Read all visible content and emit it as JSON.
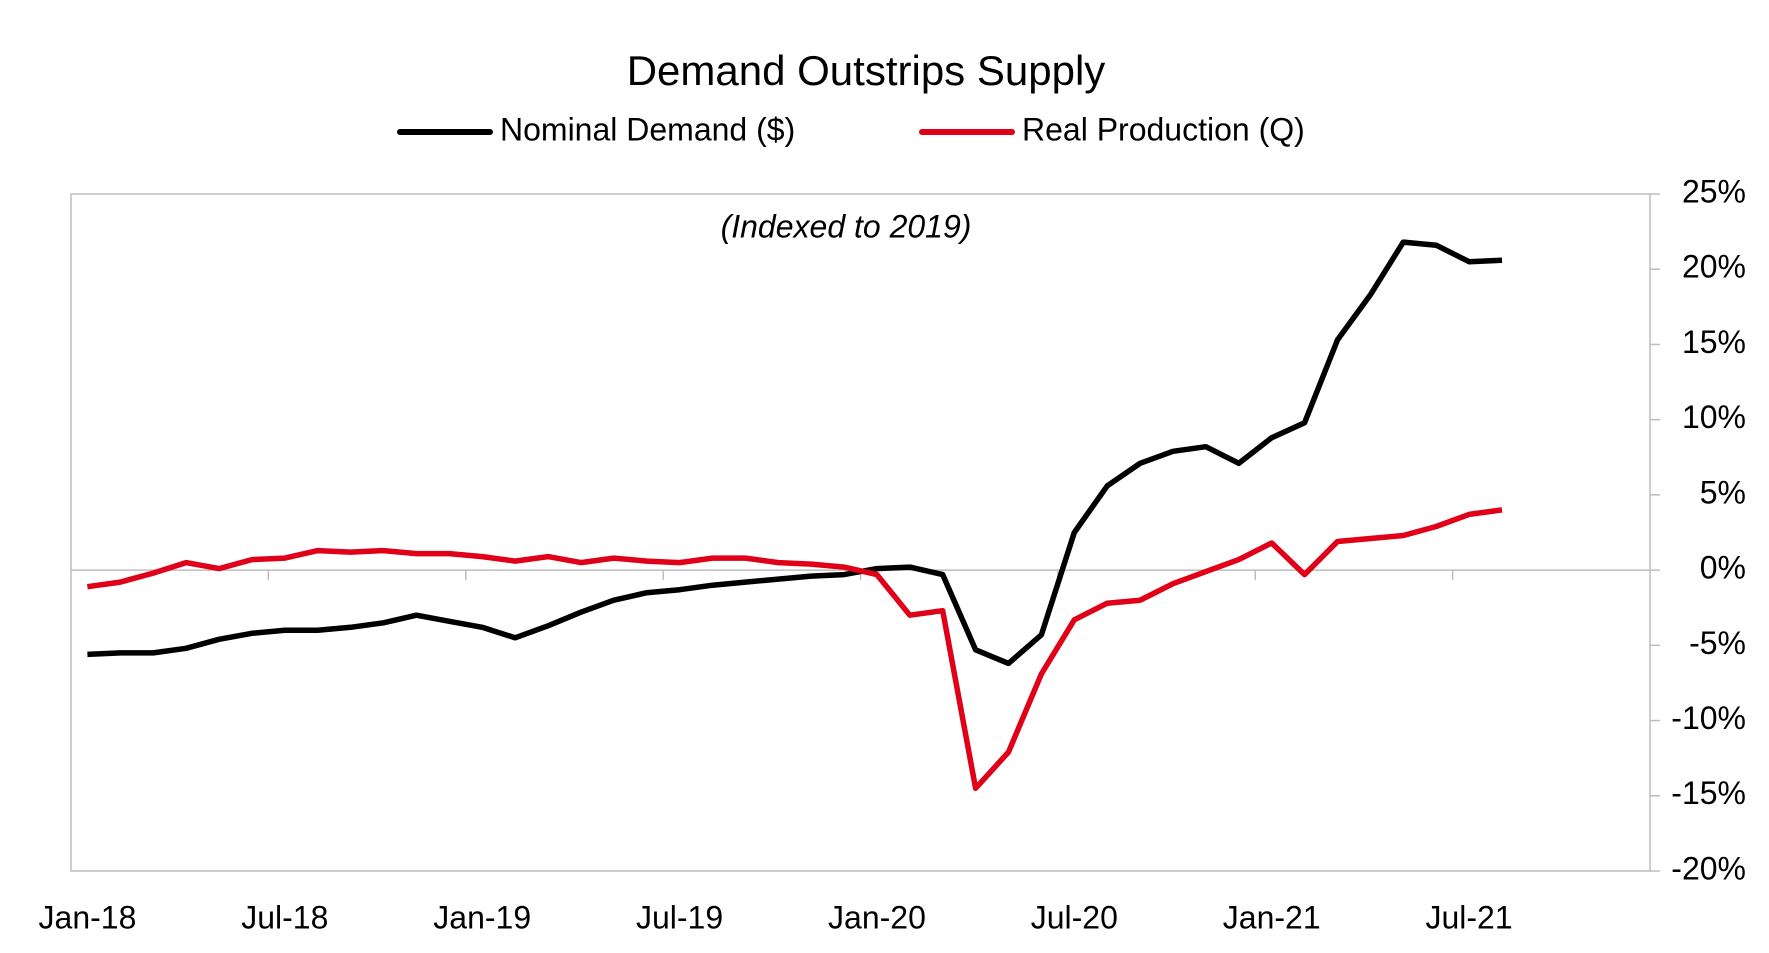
{
  "chart_data": {
    "type": "line",
    "title": "Demand Outstrips Supply",
    "annotation": "(Indexed to 2019)",
    "categories": [
      "Jan-18",
      null,
      null,
      null,
      null,
      null,
      "Jul-18",
      null,
      null,
      null,
      null,
      null,
      "Jan-19",
      null,
      null,
      null,
      null,
      null,
      "Jul-19",
      null,
      null,
      null,
      null,
      null,
      "Jan-20",
      null,
      null,
      null,
      null,
      null,
      "Jul-20",
      null,
      null,
      null,
      null,
      null,
      "Jan-21",
      null,
      null,
      null,
      null,
      null,
      "Jul-21",
      null
    ],
    "series": [
      {
        "name": "Nominal Demand ($)",
        "color": "#000000",
        "values": [
          -5.6,
          -5.5,
          -5.5,
          -5.2,
          -4.6,
          -4.2,
          -4.0,
          -4.0,
          -3.8,
          -3.5,
          -3.0,
          -3.4,
          -3.8,
          -4.5,
          -3.7,
          -2.8,
          -2.0,
          -1.5,
          -1.3,
          -1.0,
          -0.8,
          -0.6,
          -0.4,
          -0.3,
          0.1,
          0.2,
          -0.3,
          -5.3,
          -6.2,
          -4.3,
          2.5,
          5.6,
          7.1,
          7.9,
          8.2,
          7.1,
          8.8,
          9.8,
          15.3,
          18.3,
          21.8,
          21.6,
          20.5,
          20.6
        ]
      },
      {
        "name": "Real Production (Q)",
        "color": "#e00018",
        "values": [
          -1.1,
          -0.8,
          -0.2,
          0.5,
          0.1,
          0.7,
          0.8,
          1.3,
          1.2,
          1.3,
          1.1,
          1.1,
          0.9,
          0.6,
          0.9,
          0.5,
          0.8,
          0.6,
          0.5,
          0.8,
          0.8,
          0.5,
          0.4,
          0.2,
          -0.3,
          -3.0,
          -2.7,
          -14.5,
          -12.1,
          -6.9,
          -3.3,
          -2.2,
          -2.0,
          -0.9,
          -0.1,
          0.7,
          1.8,
          -0.3,
          1.9,
          2.1,
          2.3,
          2.9,
          3.7,
          4.0
        ]
      }
    ],
    "ylim": [
      -20,
      25
    ],
    "yticks": [
      {
        "value": -20,
        "label": "-20%"
      },
      {
        "value": -15,
        "label": "-15%"
      },
      {
        "value": -10,
        "label": "-10%"
      },
      {
        "value": -5,
        "label": "-5%"
      },
      {
        "value": 0,
        "label": "0%"
      },
      {
        "value": 5,
        "label": "5%"
      },
      {
        "value": 10,
        "label": "10%"
      },
      {
        "value": 15,
        "label": "15%"
      },
      {
        "value": 20,
        "label": "20%"
      },
      {
        "value": 25,
        "label": "25%"
      }
    ],
    "legend": "top",
    "grid": false
  }
}
